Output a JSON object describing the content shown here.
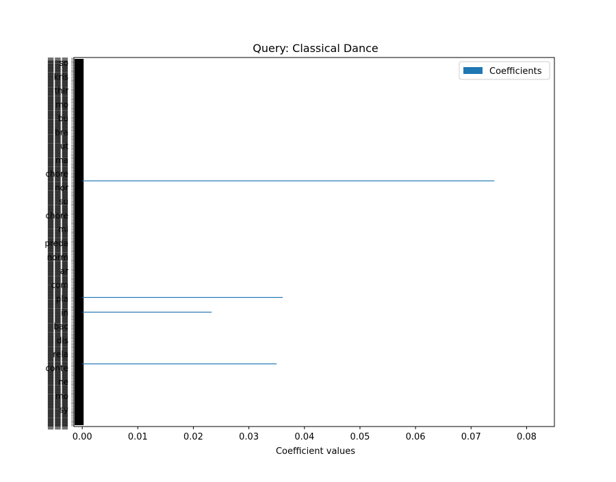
{
  "chart_data": {
    "type": "bar",
    "orientation": "horizontal",
    "title": "Query: Classical Dance",
    "xlabel": "Coefficient values",
    "ylabel": "",
    "xlim": [
      -0.0015,
      0.085
    ],
    "xticks": [
      "0.00",
      "0.01",
      "0.02",
      "0.03",
      "0.04",
      "0.05",
      "0.06",
      "0.07",
      "0.08"
    ],
    "xtick_values": [
      0,
      0.01,
      0.02,
      0.03,
      0.04,
      0.05,
      0.06,
      0.07,
      0.08
    ],
    "category_count": 250,
    "categories_note": "",
    "visible_category_fragments": [
      "so",
      "kris",
      "thir",
      "mo",
      "bu",
      "bra",
      "ut",
      "ma",
      "chore",
      "nor",
      "su",
      "chore",
      "mi",
      "preda",
      "norm",
      "ar",
      "com",
      "pla",
      "in",
      "bac",
      "dis",
      "rela",
      "conte",
      "ne",
      "mo",
      "sy"
    ],
    "series": [
      {
        "name": "Coefficients",
        "color": "#1f77b4",
        "nonzero_bars": [
          {
            "category_index": 42,
            "value": 0.035
          },
          {
            "category_index": 77,
            "value": 0.0233
          },
          {
            "category_index": 87,
            "value": 0.0361
          },
          {
            "category_index": 166,
            "value": 0.0742
          }
        ]
      }
    ],
    "grid": false,
    "legend": {
      "entries": [
        "Coefficients"
      ],
      "placement": "top-right"
    }
  }
}
